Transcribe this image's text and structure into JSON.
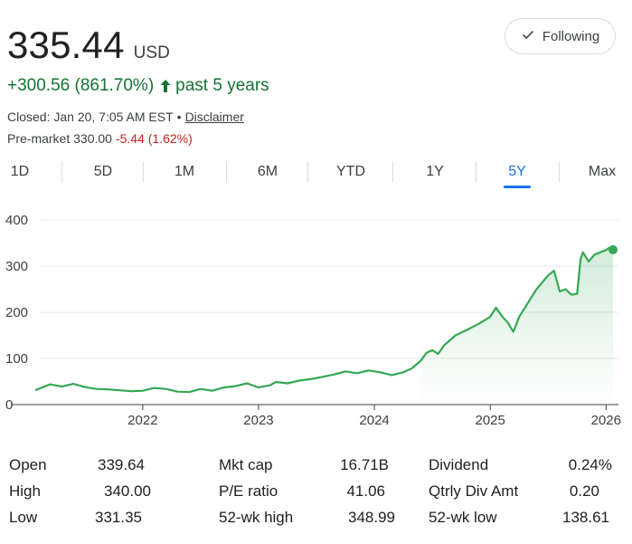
{
  "quote": {
    "price": "335.44",
    "currency": "USD",
    "change": "+300.56 (861.70%)",
    "change_period": "past 5 years",
    "closed_text": "Closed: Jan 20, 7:05 AM EST",
    "separator": "•",
    "disclaimer": "Disclaimer",
    "premarket_label": "Pre-market 330.00",
    "premarket_change": "-5.44 (1.62%)",
    "follow_label": "Following"
  },
  "tabs": [
    {
      "label": "1D"
    },
    {
      "label": "5D"
    },
    {
      "label": "1M"
    },
    {
      "label": "6M"
    },
    {
      "label": "YTD"
    },
    {
      "label": "1Y"
    },
    {
      "label": "5Y",
      "active": true
    },
    {
      "label": "Max"
    }
  ],
  "colors": {
    "line": "#34a853",
    "positive": "#137333",
    "negative": "#c5221f",
    "accent": "#1a73e8"
  },
  "chart_data": {
    "type": "line",
    "y_ticks": [
      "400",
      "300",
      "200",
      "100",
      "0"
    ],
    "x_ticks": [
      "2022",
      "2023",
      "2024",
      "2025",
      "2026"
    ],
    "ylim": [
      0,
      400
    ],
    "xlim": [
      2021.08,
      2026.06
    ],
    "grid": true,
    "series": [
      {
        "x": [
          2021.08,
          2021.2,
          2021.3,
          2021.4,
          2021.5,
          2021.6,
          2021.7,
          2021.8,
          2021.9,
          2022.0,
          2022.1,
          2022.2,
          2022.3,
          2022.4,
          2022.5,
          2022.6,
          2022.7,
          2022.8,
          2022.9,
          2023.0,
          2023.1,
          2023.15,
          2023.25,
          2023.35,
          2023.45,
          2023.55,
          2023.65,
          2023.75,
          2023.85,
          2023.95,
          2024.05,
          2024.15,
          2024.25,
          2024.32,
          2024.4,
          2024.45,
          2024.5,
          2024.55,
          2024.6,
          2024.7,
          2024.8,
          2024.9,
          2025.0,
          2025.05,
          2025.1,
          2025.15,
          2025.2,
          2025.25,
          2025.3,
          2025.35,
          2025.4,
          2025.45,
          2025.5,
          2025.55,
          2025.6,
          2025.65,
          2025.7,
          2025.75,
          2025.78,
          2025.8,
          2025.85,
          2025.9,
          2025.95,
          2026.0,
          2026.03,
          2026.06
        ],
        "values": [
          32,
          44,
          39,
          45,
          38,
          34,
          33,
          31,
          29,
          30,
          36,
          34,
          28,
          27,
          34,
          30,
          37,
          40,
          46,
          37,
          42,
          49,
          46,
          52,
          55,
          60,
          65,
          72,
          68,
          74,
          70,
          64,
          70,
          78,
          95,
          112,
          118,
          110,
          128,
          150,
          162,
          175,
          190,
          210,
          192,
          178,
          158,
          190,
          210,
          230,
          250,
          265,
          280,
          290,
          245,
          250,
          238,
          240,
          315,
          330,
          310,
          325,
          330,
          335,
          340,
          335.44
        ]
      }
    ]
  },
  "stats": [
    [
      {
        "label": "Open",
        "value": "339.64"
      },
      {
        "label": "Mkt cap",
        "value": "16.71B"
      },
      {
        "label": "Dividend",
        "value": "0.24%"
      }
    ],
    [
      {
        "label": "High",
        "value": "340.00"
      },
      {
        "label": "P/E ratio",
        "value": "41.06"
      },
      {
        "label": "Qtrly Div Amt",
        "value": "0.20"
      }
    ],
    [
      {
        "label": "Low",
        "value": "331.35"
      },
      {
        "label": "52-wk high",
        "value": "348.99"
      },
      {
        "label": "52-wk low",
        "value": "138.61"
      }
    ]
  ]
}
